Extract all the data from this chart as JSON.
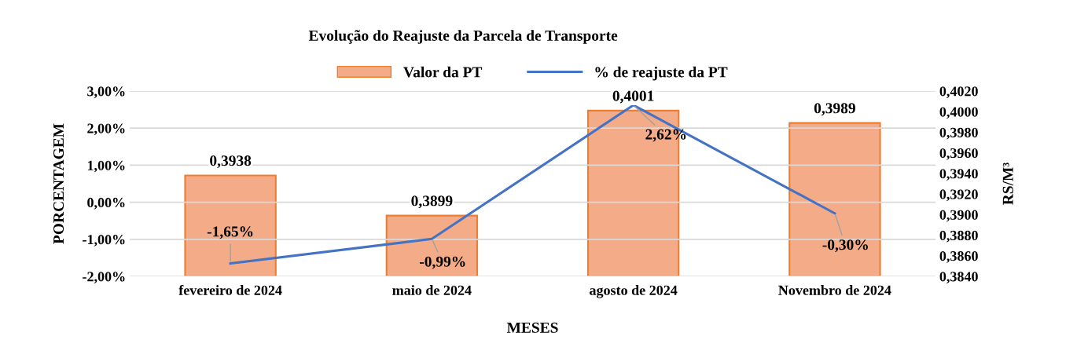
{
  "chart_data": {
    "type": "bar",
    "title": "Evolução do Reajuste da Parcela de Transporte",
    "xlabel": "MESES",
    "ylabel": "PORCENTAGEM",
    "y2label": "RS/M³",
    "categories": [
      "fevereiro de 2024",
      "maio de 2024",
      "agosto de 2024",
      "Novembro de 2024"
    ],
    "series": [
      {
        "name": "Valor da PT",
        "axis": "y2",
        "color": "#f4ab87",
        "values": [
          0.3938,
          0.3899,
          0.4001,
          0.3989
        ],
        "value_labels": [
          "0,3938",
          "0,3899",
          "0,4001",
          "0,3989"
        ]
      },
      {
        "name": "% de reajuste da PT",
        "type": "line",
        "color": "#4472c4",
        "values": [
          -1.65,
          -0.99,
          2.62,
          -0.3
        ],
        "value_labels": [
          "-1,65%",
          "-0,99%",
          "2,62%",
          "-0,30%"
        ]
      }
    ],
    "ylim": [
      -2,
      3
    ],
    "yticks": [
      {
        "value": -2,
        "label": "-2,00%"
      },
      {
        "value": -1,
        "label": "-1,00%"
      },
      {
        "value": 0,
        "label": "0,00%"
      },
      {
        "value": 1,
        "label": "1,00%"
      },
      {
        "value": 2,
        "label": "2,00%"
      },
      {
        "value": 3,
        "label": "3,00%"
      }
    ],
    "y2lim": [
      0.384,
      0.402
    ],
    "y2ticks": [
      {
        "value": 0.384,
        "label": "0,3840"
      },
      {
        "value": 0.386,
        "label": "0,3860"
      },
      {
        "value": 0.388,
        "label": "0,3880"
      },
      {
        "value": 0.39,
        "label": "0,3900"
      },
      {
        "value": 0.392,
        "label": "0,3920"
      },
      {
        "value": 0.394,
        "label": "0,3940"
      },
      {
        "value": 0.396,
        "label": "0,3960"
      },
      {
        "value": 0.398,
        "label": "0,3980"
      },
      {
        "value": 0.4,
        "label": "0,4000"
      },
      {
        "value": 0.402,
        "label": "0,4020"
      }
    ],
    "grid": "y",
    "legend": "top",
    "marker": "none",
    "line_style": "solid"
  }
}
